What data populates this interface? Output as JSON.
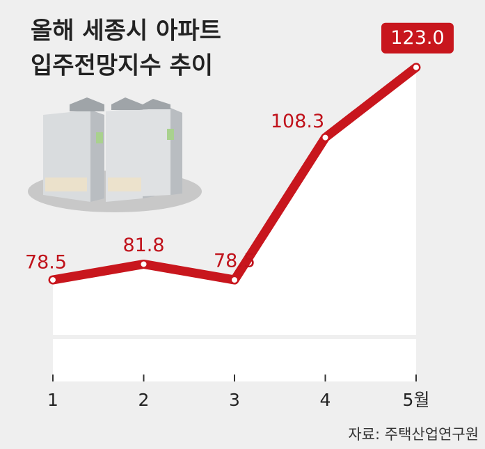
{
  "chart_data": {
    "type": "line",
    "title": [
      "올해 세종시 아파트",
      "입주전망지수 추이"
    ],
    "categories": [
      "1",
      "2",
      "3",
      "4",
      "5월"
    ],
    "values": [
      78.5,
      81.8,
      78.5,
      108.3,
      123.0
    ],
    "value_labels": [
      "78.5",
      "81.8",
      "78.5",
      "108.3",
      "123.0"
    ],
    "color": "#c8161d",
    "ylim": [
      67,
      125
    ],
    "source": "자료: 주택산업연구원"
  }
}
